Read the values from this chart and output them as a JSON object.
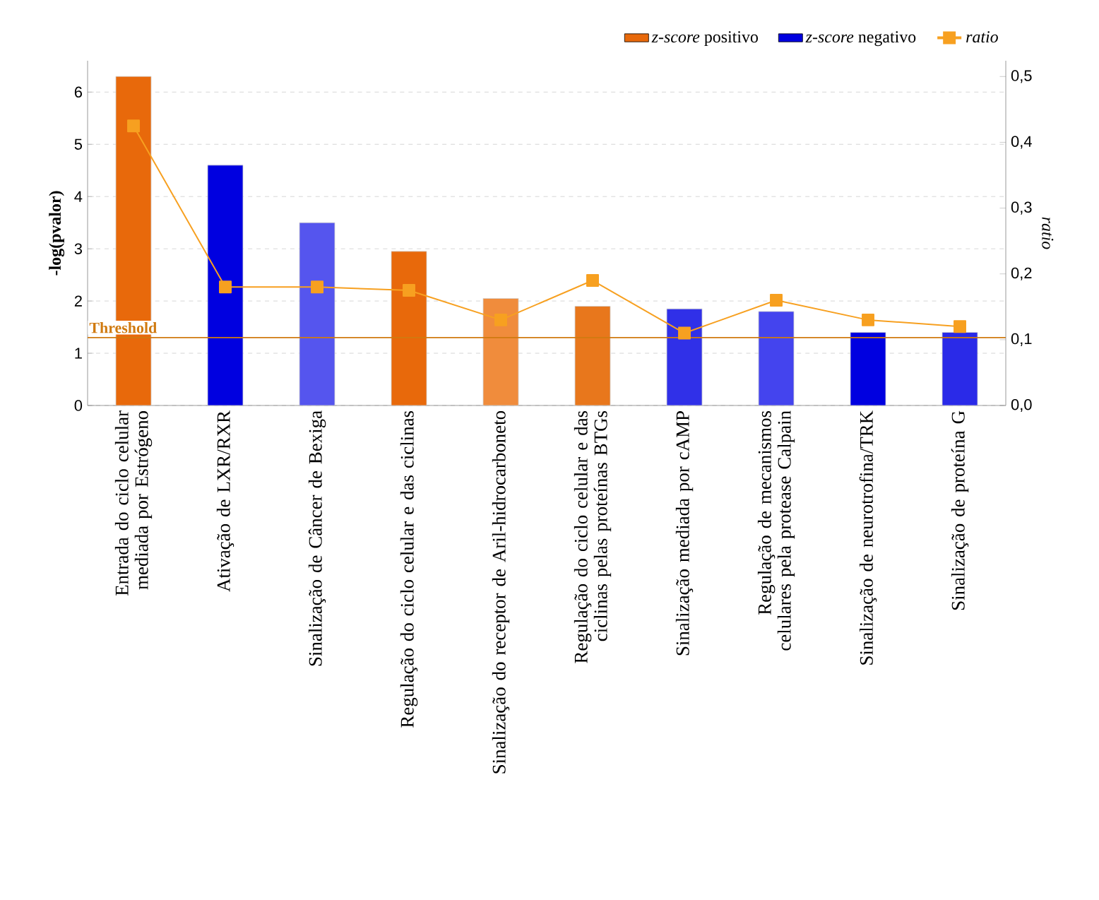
{
  "chart_data": {
    "type": "bar",
    "ylabel": "-log(pvalor)",
    "y2label": "ratio",
    "categories": [
      "Entrada do ciclo celular mediada por Estrógeno",
      "Ativação de LXR/RXR",
      "Sinalização de Câncer de Bexiga",
      "Regulação do ciclo celular e das ciclinas",
      "Sinalização do receptor de Aril-hidrocarboneto",
      "Regulação do ciclo celular e das ciclinas pelas proteínas BTGs",
      "Sinalização mediada por cAMP",
      "Regulação de mecanismos celulares pela protease Calpain",
      "Sinalização de neurotrofina/TRK",
      "Sinalização de proteína G"
    ],
    "series": [
      {
        "name": "*z-score* positivo",
        "color": "#e8690b",
        "values": [
          6.3,
          null,
          null,
          2.95,
          2.05,
          1.9,
          null,
          null,
          null,
          null
        ],
        "colors": [
          "#e8690b",
          null,
          null,
          "#e8690b",
          "#f08c3c",
          "#e8771c",
          null,
          null,
          null,
          null
        ]
      },
      {
        "name": "*z-score* negativo",
        "color": "#0000e0",
        "values": [
          null,
          4.6,
          3.5,
          null,
          null,
          null,
          1.85,
          1.8,
          1.4,
          1.4
        ],
        "colors": [
          null,
          "#0000e0",
          "#5555ee",
          null,
          null,
          null,
          "#3030e8",
          "#4444ee",
          "#0000e0",
          "#2a2ae8"
        ]
      },
      {
        "name": "ratio",
        "type": "line",
        "axis": "y2",
        "color": "#f7a020",
        "marker": "square",
        "values": [
          0.425,
          0.18,
          0.18,
          0.175,
          0.13,
          0.19,
          0.11,
          0.16,
          0.13,
          0.12
        ]
      }
    ],
    "ylim": [
      0,
      6.6
    ],
    "yticks": [
      0,
      1,
      2,
      3,
      4,
      5,
      6
    ],
    "y2lim": [
      0,
      0.524
    ],
    "y2ticks": [
      {
        "value": 0,
        "label": "0,0"
      },
      {
        "value": 0.1,
        "label": "0,1"
      },
      {
        "value": 0.2,
        "label": "0,2"
      },
      {
        "value": 0.3,
        "label": "0,3"
      },
      {
        "value": 0.4,
        "label": "0,4"
      },
      {
        "value": 0.5,
        "label": "0,5"
      }
    ],
    "ref_lines": [
      {
        "axis": "y",
        "value": 1.3,
        "label": "Threshold",
        "color": "#d07a10"
      }
    ],
    "grid": "y",
    "legend": "top right"
  }
}
